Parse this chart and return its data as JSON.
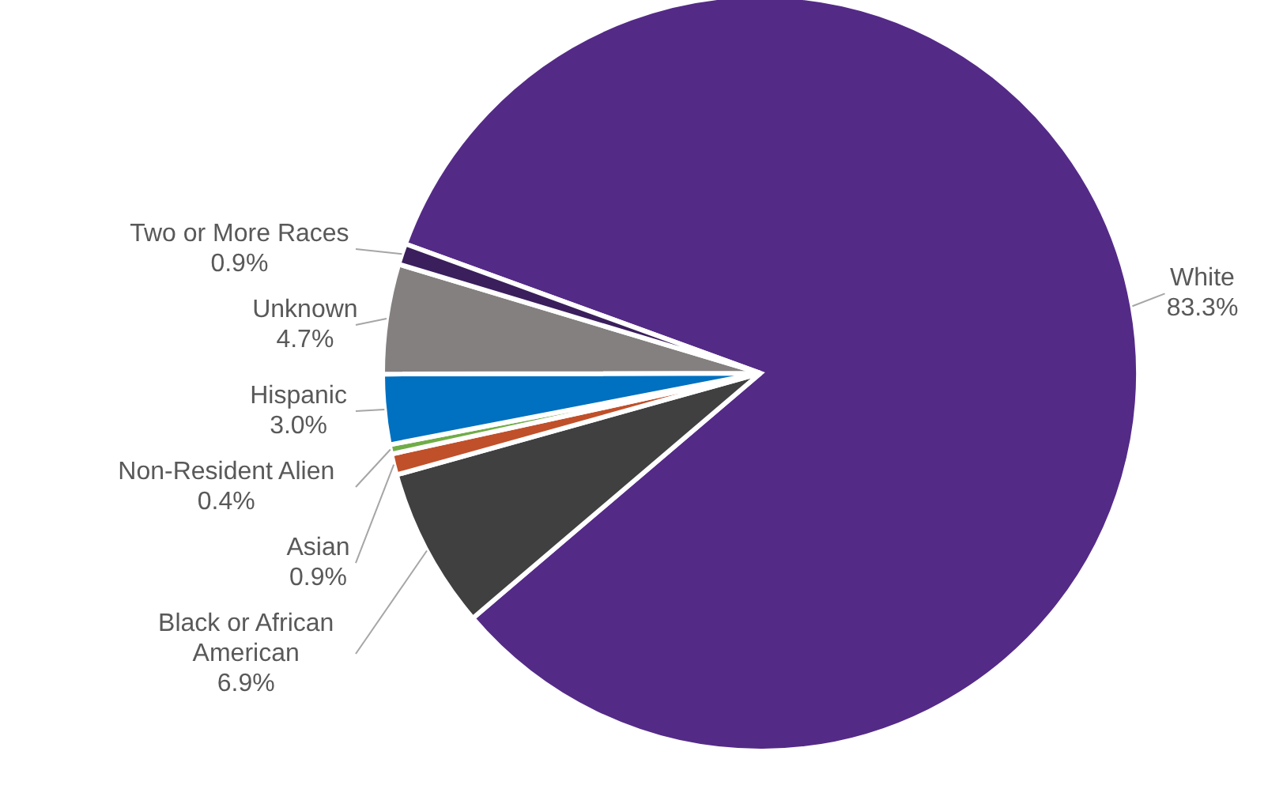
{
  "chart_data": {
    "type": "pie",
    "categories": [
      "White",
      "Black or African American",
      "Asian",
      "Non-Resident  Alien",
      "Hispanic",
      "Unknown",
      "Two or More Races"
    ],
    "values": [
      83.3,
      6.9,
      0.9,
      0.4,
      3.0,
      4.7,
      0.9
    ],
    "colors": [
      "#542a87",
      "#404040",
      "#c0502a",
      "#70ad47",
      "#0070c0",
      "#858080",
      "#3a1f5c"
    ],
    "value_labels": [
      "83.3%",
      "6.9%",
      "0.9%",
      "0.4%",
      "3.0%",
      "4.7%",
      "0.9%"
    ]
  }
}
